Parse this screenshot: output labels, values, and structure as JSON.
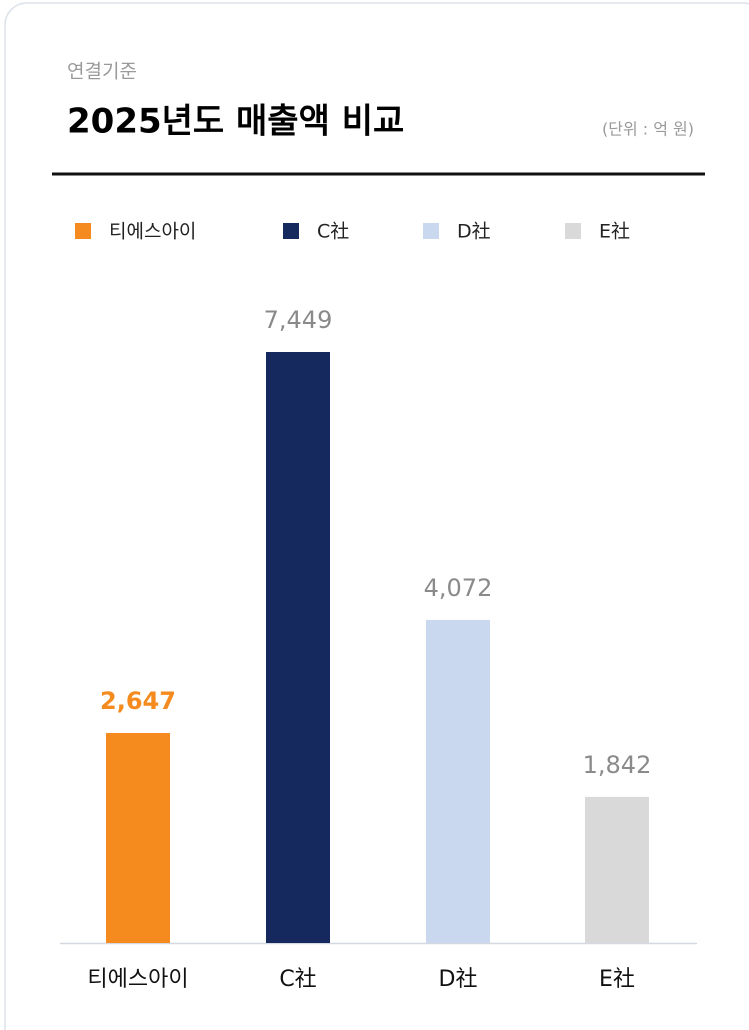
{
  "chart_data": {
    "type": "bar",
    "subtitle": "연결기준",
    "title": "2025년도 매출액 비교",
    "unit": "(단위 : 억 원)",
    "categories": [
      "티에스아이",
      "C社",
      "D社",
      "E社"
    ],
    "values": [
      2647,
      7449,
      4072,
      1842
    ],
    "value_labels": [
      "2,647",
      "7,449",
      "4,072",
      "1,842"
    ],
    "colors": [
      "#f58b1f",
      "#15295e",
      "#c9d8ee",
      "#d9d9d9"
    ],
    "legend": "top"
  }
}
